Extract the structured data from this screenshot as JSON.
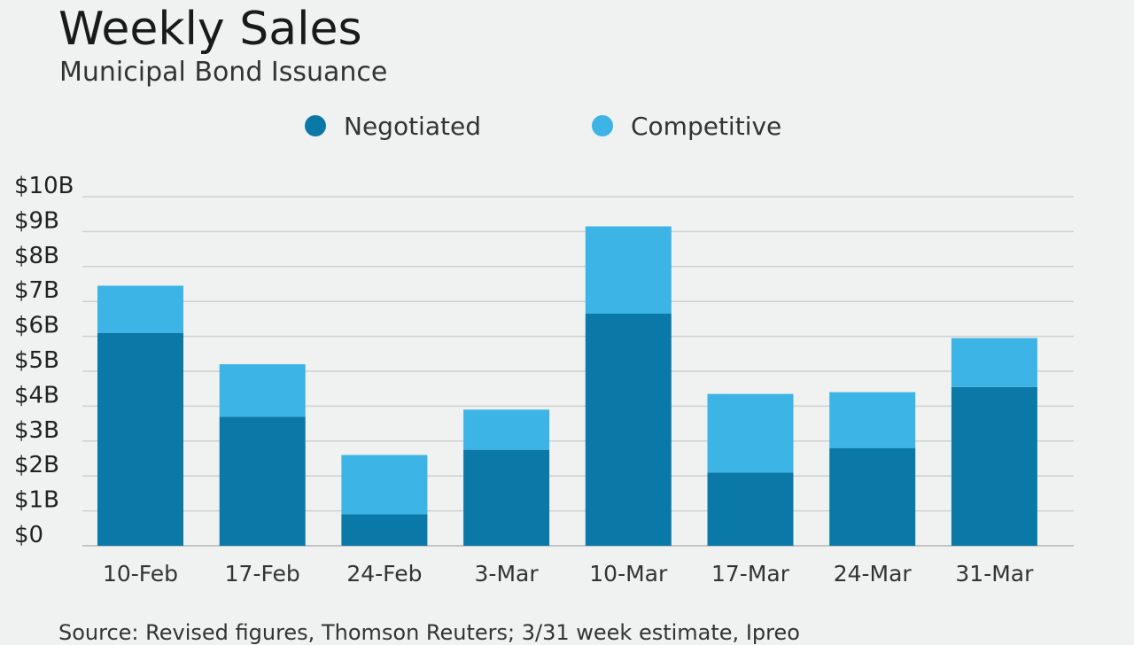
{
  "chart_data": {
    "type": "bar",
    "stacked": true,
    "title": "Weekly Sales",
    "subtitle": "Municipal Bond Issuance",
    "categories": [
      "10-Feb",
      "17-Feb",
      "24-Feb",
      "3-Mar",
      "10-Mar",
      "17-Mar",
      "24-Mar",
      "31-Mar"
    ],
    "series": [
      {
        "name": "Negotiated",
        "color": "#0b79a8",
        "values": [
          6.1,
          3.7,
          0.9,
          2.75,
          6.65,
          2.1,
          2.8,
          4.55
        ]
      },
      {
        "name": "Competitive",
        "color": "#3cb4e5",
        "values": [
          1.35,
          1.5,
          1.7,
          1.15,
          2.5,
          2.25,
          1.6,
          1.4
        ]
      }
    ],
    "yticks": [
      "$0",
      "$1B",
      "$2B",
      "$3B",
      "$4B",
      "$5B",
      "$6B",
      "$7B",
      "$8B",
      "$9B",
      "$10B"
    ],
    "ylim": [
      0,
      10
    ],
    "grid": true,
    "legend_position": "top",
    "source": "Source: Revised figures, Thomson Reuters; 3/31 week estimate, Ipreo"
  }
}
